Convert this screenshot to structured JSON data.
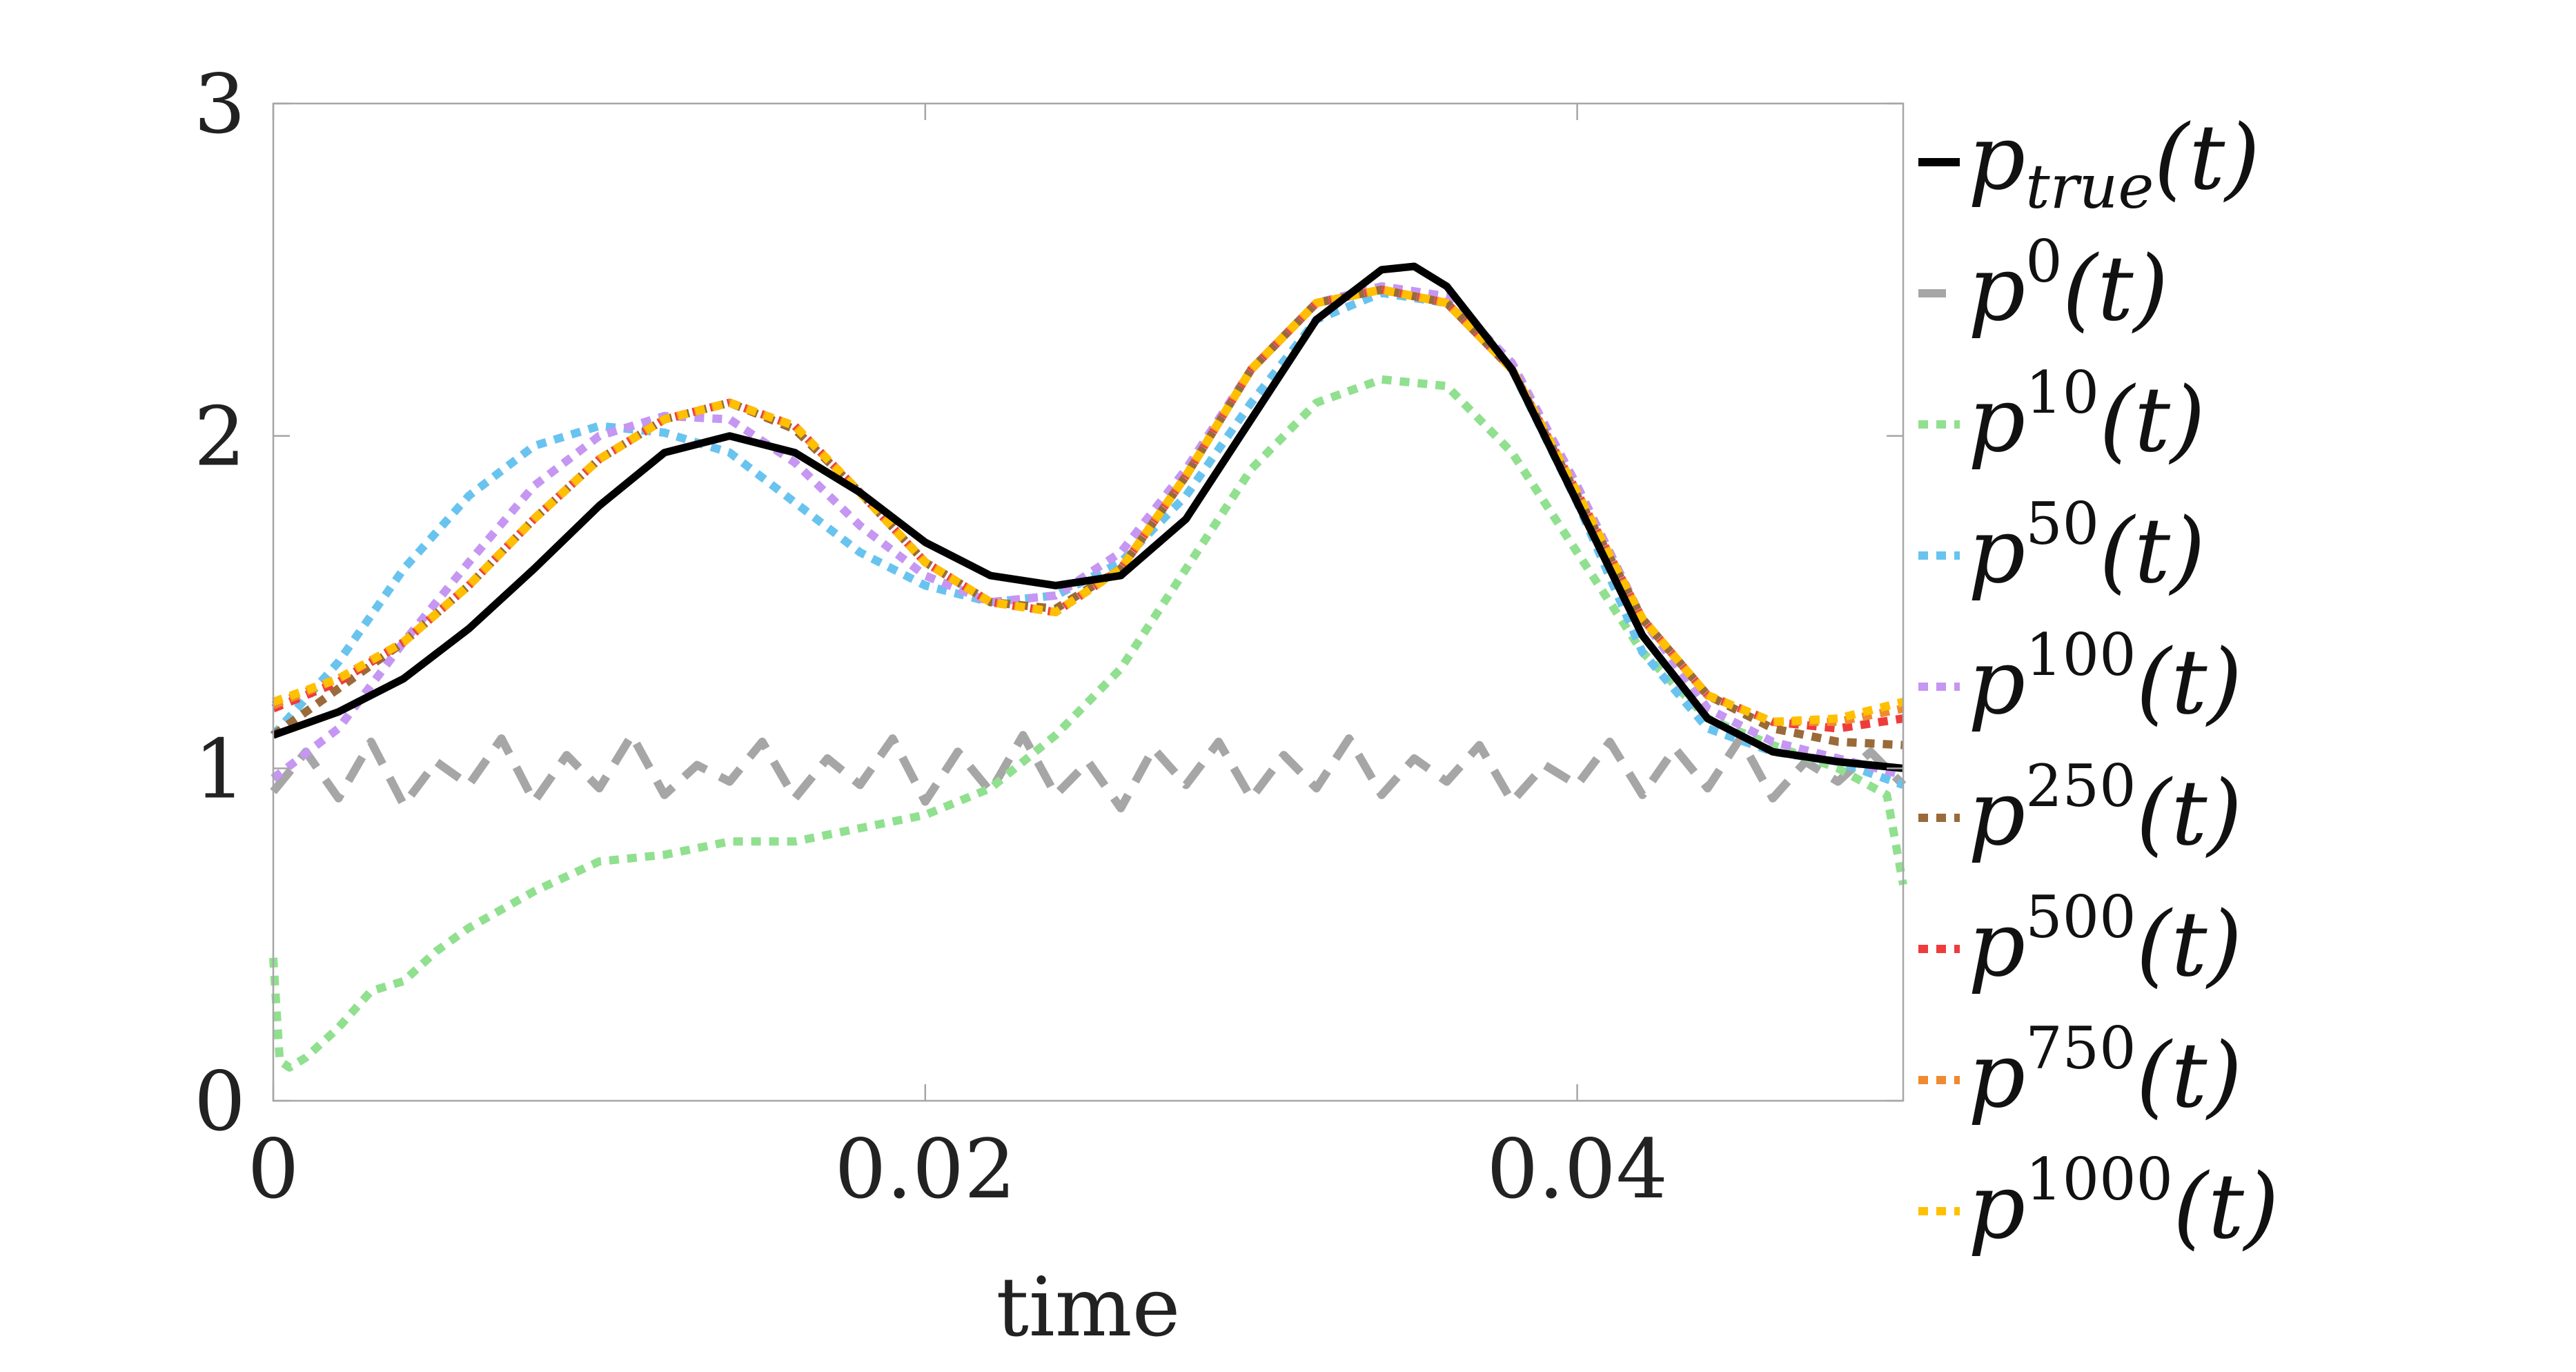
{
  "chart_data": {
    "type": "line",
    "xlabel": "time",
    "ylabel": "",
    "xlim": [
      0,
      0.05
    ],
    "ylim": [
      0,
      3
    ],
    "x_ticks": [
      0,
      0.02,
      0.04
    ],
    "x_tick_labels": [
      "0",
      "0.02",
      "0.04"
    ],
    "y_ticks": [
      0,
      1,
      2,
      3
    ],
    "y_tick_labels": [
      "0",
      "1",
      "2",
      "3"
    ],
    "grid": false,
    "legend_placement": "outside-right",
    "series": [
      {
        "name": "p_true(t)",
        "legend_base": "p",
        "legend_sub": "true",
        "legend_sup": "",
        "legend_arg": "(t)",
        "color": "#000000",
        "style": "solid",
        "x": [
          0,
          0.002,
          0.004,
          0.006,
          0.008,
          0.01,
          0.012,
          0.014,
          0.016,
          0.018,
          0.02,
          0.022,
          0.024,
          0.026,
          0.028,
          0.03,
          0.032,
          0.034,
          0.035,
          0.036,
          0.038,
          0.04,
          0.042,
          0.044,
          0.046,
          0.048,
          0.05
        ],
        "y": [
          1.1,
          1.17,
          1.27,
          1.42,
          1.6,
          1.79,
          1.95,
          2.0,
          1.95,
          1.83,
          1.68,
          1.58,
          1.55,
          1.58,
          1.75,
          2.05,
          2.35,
          2.5,
          2.51,
          2.45,
          2.2,
          1.8,
          1.4,
          1.15,
          1.05,
          1.02,
          1.0
        ]
      },
      {
        "name": "p^0(t)",
        "legend_base": "p",
        "legend_sub": "",
        "legend_sup": "0",
        "legend_arg": "(t)",
        "color": "#a6a6a6",
        "style": "dashed",
        "x": [
          0,
          0.001,
          0.002,
          0.003,
          0.004,
          0.005,
          0.006,
          0.007,
          0.008,
          0.009,
          0.01,
          0.011,
          0.012,
          0.013,
          0.014,
          0.015,
          0.016,
          0.017,
          0.018,
          0.019,
          0.02,
          0.021,
          0.022,
          0.023,
          0.024,
          0.025,
          0.026,
          0.027,
          0.028,
          0.029,
          0.03,
          0.031,
          0.032,
          0.033,
          0.034,
          0.035,
          0.036,
          0.037,
          0.038,
          0.039,
          0.04,
          0.041,
          0.042,
          0.043,
          0.044,
          0.045,
          0.046,
          0.047,
          0.048,
          0.049,
          0.05
        ],
        "y": [
          0.93,
          1.05,
          0.91,
          1.08,
          0.89,
          1.02,
          0.95,
          1.09,
          0.9,
          1.04,
          0.94,
          1.1,
          0.92,
          1.01,
          0.96,
          1.08,
          0.91,
          1.03,
          0.95,
          1.09,
          0.9,
          1.05,
          0.93,
          1.1,
          0.92,
          1.02,
          0.88,
          1.06,
          0.95,
          1.08,
          0.91,
          1.04,
          0.94,
          1.09,
          0.92,
          1.03,
          0.96,
          1.07,
          0.9,
          1.01,
          0.95,
          1.08,
          0.92,
          1.06,
          0.94,
          1.09,
          0.91,
          1.02,
          0.96,
          1.05,
          0.95
        ]
      },
      {
        "name": "p^10(t)",
        "legend_base": "p",
        "legend_sub": "",
        "legend_sup": "10",
        "legend_arg": "(t)",
        "color": "#90e08f",
        "style": "dotted",
        "x": [
          0,
          0.0002,
          0.0005,
          0.001,
          0.002,
          0.003,
          0.004,
          0.005,
          0.006,
          0.008,
          0.01,
          0.012,
          0.014,
          0.016,
          0.018,
          0.02,
          0.022,
          0.024,
          0.026,
          0.028,
          0.03,
          0.032,
          0.034,
          0.036,
          0.038,
          0.04,
          0.042,
          0.044,
          0.046,
          0.048,
          0.0495,
          0.05
        ],
        "y": [
          0.43,
          0.12,
          0.1,
          0.13,
          0.22,
          0.33,
          0.36,
          0.45,
          0.52,
          0.63,
          0.72,
          0.74,
          0.78,
          0.78,
          0.82,
          0.86,
          0.94,
          1.1,
          1.3,
          1.6,
          1.9,
          2.1,
          2.17,
          2.15,
          1.95,
          1.65,
          1.35,
          1.15,
          1.07,
          1.0,
          0.92,
          0.65
        ]
      },
      {
        "name": "p^50(t)",
        "legend_base": "p",
        "legend_sub": "",
        "legend_sup": "50",
        "legend_arg": "(t)",
        "color": "#69c3ef",
        "style": "dotted",
        "x": [
          0,
          0.002,
          0.004,
          0.006,
          0.008,
          0.01,
          0.012,
          0.014,
          0.016,
          0.018,
          0.02,
          0.022,
          0.024,
          0.026,
          0.028,
          0.03,
          0.032,
          0.034,
          0.036,
          0.038,
          0.04,
          0.042,
          0.044,
          0.046,
          0.048,
          0.05
        ],
        "y": [
          1.1,
          1.32,
          1.6,
          1.82,
          1.97,
          2.03,
          2.01,
          1.95,
          1.8,
          1.65,
          1.55,
          1.5,
          1.52,
          1.62,
          1.82,
          2.1,
          2.35,
          2.43,
          2.4,
          2.2,
          1.8,
          1.35,
          1.12,
          1.05,
          1.02,
          0.95
        ]
      },
      {
        "name": "p^100(t)",
        "legend_base": "p",
        "legend_sub": "",
        "legend_sup": "100",
        "legend_arg": "(t)",
        "color": "#c596f2",
        "style": "dotted",
        "x": [
          0,
          0.002,
          0.004,
          0.006,
          0.008,
          0.01,
          0.012,
          0.014,
          0.016,
          0.018,
          0.02,
          0.022,
          0.024,
          0.026,
          0.028,
          0.03,
          0.032,
          0.034,
          0.036,
          0.038,
          0.04,
          0.042,
          0.044,
          0.046,
          0.048,
          0.05
        ],
        "y": [
          0.97,
          1.12,
          1.38,
          1.62,
          1.85,
          2.0,
          2.06,
          2.05,
          1.92,
          1.73,
          1.58,
          1.5,
          1.52,
          1.65,
          1.9,
          2.2,
          2.4,
          2.45,
          2.42,
          2.22,
          1.85,
          1.45,
          1.18,
          1.08,
          1.03,
          0.98
        ]
      },
      {
        "name": "p^250(t)",
        "legend_base": "p",
        "legend_sub": "",
        "legend_sup": "250",
        "legend_arg": "(t)",
        "color": "#9a6a3a",
        "style": "dotted",
        "x": [
          0,
          0.002,
          0.004,
          0.006,
          0.008,
          0.01,
          0.012,
          0.014,
          0.016,
          0.018,
          0.02,
          0.022,
          0.024,
          0.026,
          0.028,
          0.03,
          0.032,
          0.034,
          0.036,
          0.038,
          0.04,
          0.042,
          0.044,
          0.046,
          0.048,
          0.05
        ],
        "y": [
          1.1,
          1.24,
          1.38,
          1.55,
          1.75,
          1.93,
          2.05,
          2.1,
          2.02,
          1.83,
          1.62,
          1.5,
          1.48,
          1.6,
          1.88,
          2.2,
          2.4,
          2.44,
          2.4,
          2.2,
          1.82,
          1.45,
          1.22,
          1.12,
          1.08,
          1.07
        ]
      },
      {
        "name": "p^500(t)",
        "legend_base": "p",
        "legend_sub": "",
        "legend_sup": "500",
        "legend_arg": "(t)",
        "color": "#ef3b3b",
        "style": "dotted",
        "x": [
          0,
          0.002,
          0.004,
          0.006,
          0.008,
          0.01,
          0.012,
          0.014,
          0.016,
          0.018,
          0.02,
          0.022,
          0.024,
          0.026,
          0.028,
          0.03,
          0.032,
          0.034,
          0.036,
          0.038,
          0.04,
          0.042,
          0.044,
          0.046,
          0.048,
          0.05
        ],
        "y": [
          1.18,
          1.26,
          1.38,
          1.55,
          1.75,
          1.93,
          2.05,
          2.1,
          2.03,
          1.83,
          1.62,
          1.5,
          1.47,
          1.6,
          1.88,
          2.2,
          2.4,
          2.44,
          2.4,
          2.2,
          1.83,
          1.45,
          1.22,
          1.14,
          1.12,
          1.15
        ]
      },
      {
        "name": "p^750(t)",
        "legend_base": "p",
        "legend_sub": "",
        "legend_sup": "750",
        "legend_arg": "(t)",
        "color": "#f08a30",
        "style": "dotted",
        "x": [
          0,
          0.002,
          0.004,
          0.006,
          0.008,
          0.01,
          0.012,
          0.014,
          0.016,
          0.018,
          0.02,
          0.022,
          0.024,
          0.026,
          0.028,
          0.03,
          0.032,
          0.034,
          0.036,
          0.038,
          0.04,
          0.042,
          0.044,
          0.046,
          0.048,
          0.05
        ],
        "y": [
          1.19,
          1.27,
          1.38,
          1.55,
          1.75,
          1.93,
          2.05,
          2.1,
          2.03,
          1.83,
          1.62,
          1.5,
          1.47,
          1.6,
          1.88,
          2.2,
          2.4,
          2.44,
          2.4,
          2.2,
          1.83,
          1.45,
          1.22,
          1.14,
          1.14,
          1.18
        ]
      },
      {
        "name": "p^1000(t)",
        "legend_base": "p",
        "legend_sub": "",
        "legend_sup": "1000",
        "legend_arg": "(t)",
        "color": "#ffc000",
        "style": "dotted",
        "x": [
          0,
          0.002,
          0.004,
          0.006,
          0.008,
          0.01,
          0.012,
          0.014,
          0.016,
          0.018,
          0.02,
          0.022,
          0.024,
          0.026,
          0.028,
          0.03,
          0.032,
          0.034,
          0.036,
          0.038,
          0.04,
          0.042,
          0.044,
          0.046,
          0.048,
          0.05
        ],
        "y": [
          1.2,
          1.27,
          1.38,
          1.55,
          1.75,
          1.93,
          2.05,
          2.1,
          2.03,
          1.83,
          1.62,
          1.5,
          1.47,
          1.6,
          1.88,
          2.2,
          2.4,
          2.44,
          2.4,
          2.2,
          1.83,
          1.45,
          1.22,
          1.14,
          1.15,
          1.2
        ]
      }
    ]
  }
}
